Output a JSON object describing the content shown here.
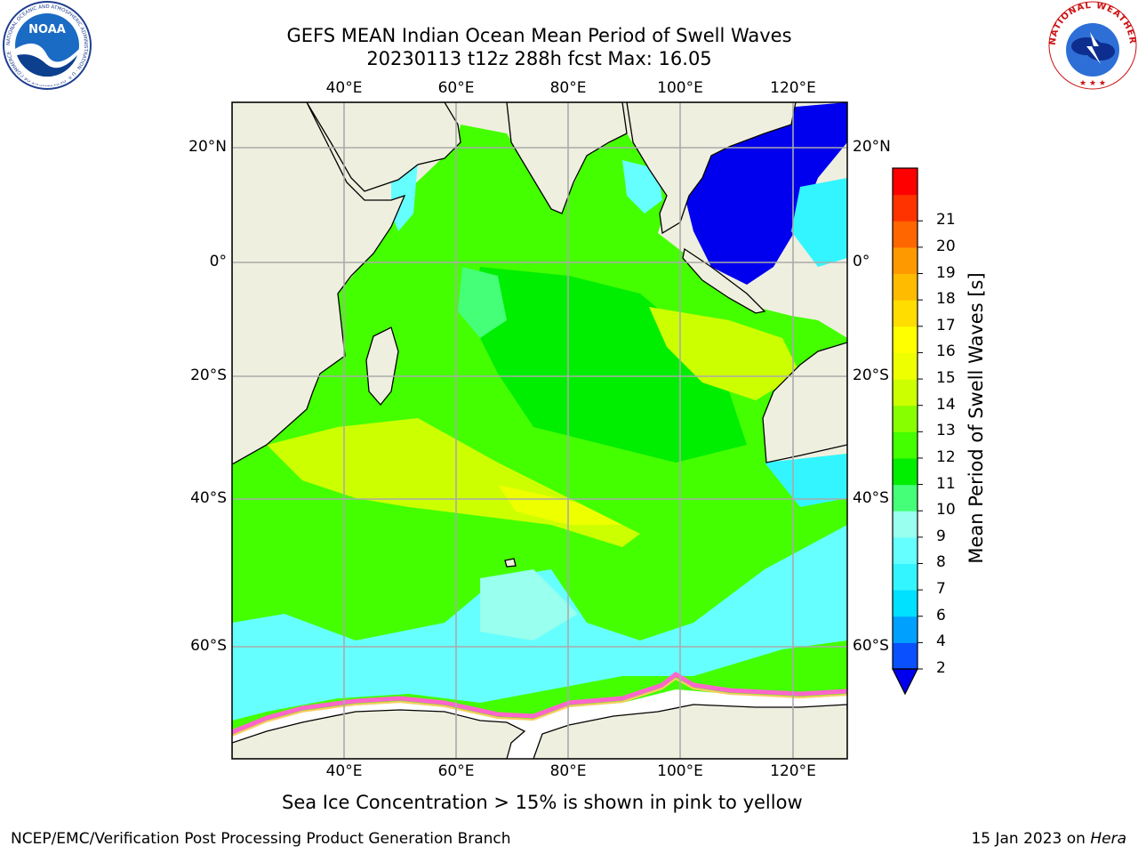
{
  "title": {
    "line1": "GEFS MEAN Indian Ocean Mean Period of Swell Waves",
    "line2": "20230113 t12z 288h fcst   Max: 16.05"
  },
  "map": {
    "lon_labels": [
      "40°E",
      "60°E",
      "80°E",
      "100°E",
      "120°E"
    ],
    "lat_labels": [
      "20°N",
      "0°",
      "20°S",
      "40°S",
      "60°S"
    ],
    "extent": {
      "lon_min": 20,
      "lon_max": 130,
      "lat_min": -71,
      "lat_max": 28
    },
    "gridlines": true,
    "land_color": "#efefdf",
    "ocean_field": "Mean Period of Swell Waves",
    "sea_ice_colors": [
      "#ff66cc",
      "#ff99ff",
      "#ffcc66",
      "#ffff99"
    ]
  },
  "colorbar": {
    "label": "Mean Period of Swell Waves [s]",
    "ticks": [
      "2",
      "4",
      "6",
      "7",
      "8",
      "9",
      "10",
      "11",
      "12",
      "13",
      "14",
      "15",
      "16",
      "17",
      "18",
      "19",
      "20",
      "21"
    ],
    "colors": [
      "#0a50ff",
      "#00a0ff",
      "#00e0ff",
      "#33f5ff",
      "#66ffff",
      "#99ffee",
      "#44ff77",
      "#00ee00",
      "#44ff00",
      "#88ff00",
      "#ccff00",
      "#eeff00",
      "#ffff00",
      "#ffdd00",
      "#ffbb00",
      "#ff9900",
      "#ff6600",
      "#ff3300",
      "#ff0000"
    ],
    "under_color": "#0000ee"
  },
  "footnote": "Sea Ice Concentration > 15% is shown in pink to yellow",
  "credits": {
    "left": "NCEP/EMC/Verification Post Processing Product Generation Branch",
    "right_prefix": "15 Jan 2023 on ",
    "right_machine": "Hera"
  },
  "logos": {
    "noaa": "NOAA",
    "noaa_ring": "NATIONAL OCEANIC AND ATMOSPHERIC ADMINISTRATION · U.S. DEPARTMENT OF COMMERCE",
    "nws_ring": "NATIONAL WEATHER SERVICE"
  }
}
